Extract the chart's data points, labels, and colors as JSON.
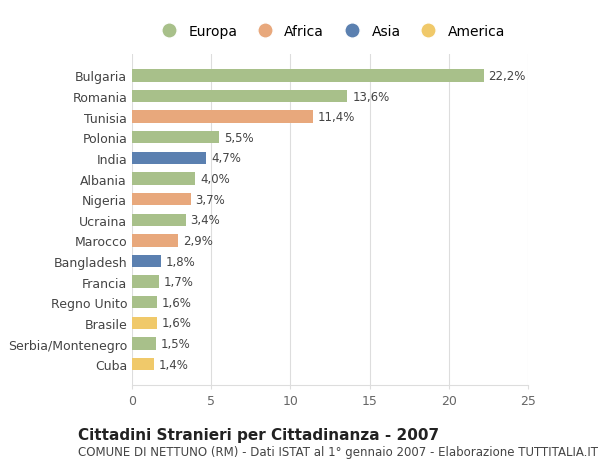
{
  "countries": [
    "Bulgaria",
    "Romania",
    "Tunisia",
    "Polonia",
    "India",
    "Albania",
    "Nigeria",
    "Ucraina",
    "Marocco",
    "Bangladesh",
    "Francia",
    "Regno Unito",
    "Brasile",
    "Serbia/Montenegro",
    "Cuba"
  ],
  "values": [
    22.2,
    13.6,
    11.4,
    5.5,
    4.7,
    4.0,
    3.7,
    3.4,
    2.9,
    1.8,
    1.7,
    1.6,
    1.6,
    1.5,
    1.4
  ],
  "labels": [
    "22,2%",
    "13,6%",
    "11,4%",
    "5,5%",
    "4,7%",
    "4,0%",
    "3,7%",
    "3,4%",
    "2,9%",
    "1,8%",
    "1,7%",
    "1,6%",
    "1,6%",
    "1,5%",
    "1,4%"
  ],
  "continents": [
    "Europa",
    "Europa",
    "Africa",
    "Europa",
    "Asia",
    "Europa",
    "Africa",
    "Europa",
    "Africa",
    "Asia",
    "Europa",
    "Europa",
    "America",
    "Europa",
    "America"
  ],
  "colors": {
    "Europa": "#a8c08a",
    "Africa": "#e8a87c",
    "Asia": "#5b80b0",
    "America": "#f0c96a"
  },
  "legend_order": [
    "Europa",
    "Africa",
    "Asia",
    "America"
  ],
  "title": "Cittadini Stranieri per Cittadinanza - 2007",
  "subtitle": "COMUNE DI NETTUNO (RM) - Dati ISTAT al 1° gennaio 2007 - Elaborazione TUTTITALIA.IT",
  "xlim": [
    0,
    25
  ],
  "xticks": [
    0,
    5,
    10,
    15,
    20,
    25
  ],
  "background_color": "#ffffff",
  "grid_color": "#dddddd",
  "bar_height": 0.6,
  "label_fontsize": 8.5,
  "title_fontsize": 11,
  "subtitle_fontsize": 8.5,
  "tick_fontsize": 9,
  "legend_fontsize": 10
}
